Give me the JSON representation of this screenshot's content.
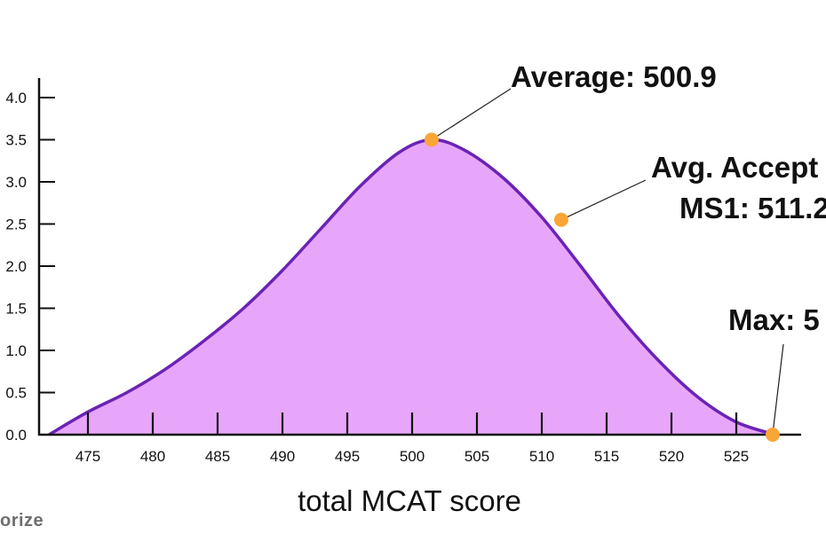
{
  "chart_data": {
    "type": "area",
    "xlabel": "total MCAT score",
    "ylabel": "",
    "xlim": [
      470,
      530
    ],
    "ylim": [
      0,
      4.0
    ],
    "x_ticks": [
      475,
      480,
      485,
      490,
      495,
      500,
      505,
      510,
      515,
      520,
      525
    ],
    "y_ticks": [
      0.0,
      0.5,
      1.0,
      1.5,
      2.0,
      2.5,
      3.0,
      3.5,
      4.0
    ],
    "x_tick_labels": [
      "475",
      "480",
      "485",
      "490",
      "495",
      "500",
      "505",
      "510",
      "515",
      "520",
      "525"
    ],
    "y_tick_labels": [
      "0.0",
      "0.5",
      "1.0",
      "1.5",
      "2.0",
      "2.5",
      "3.0",
      "3.5",
      "4.0"
    ],
    "curve": {
      "x": [
        472,
        475,
        478,
        481,
        484,
        487,
        490,
        493,
        496,
        499,
        501.5,
        504,
        507,
        510,
        513,
        516,
        519,
        522,
        525,
        528
      ],
      "y": [
        0.0,
        0.27,
        0.5,
        0.78,
        1.12,
        1.5,
        1.95,
        2.45,
        2.95,
        3.35,
        3.5,
        3.38,
        3.05,
        2.58,
        2.0,
        1.4,
        0.88,
        0.45,
        0.15,
        0.0
      ]
    },
    "colors": {
      "fill": "#E8A6FA",
      "line": "#6A23B5",
      "marker": "#FAA636",
      "axis": "#111111"
    },
    "points": [
      {
        "x": 501.5,
        "y": 3.5,
        "label_lines": [
          "Average: 500.9"
        ]
      },
      {
        "x": 511.5,
        "y": 2.55,
        "label_lines": [
          "Avg. Accept",
          "MS1: 511.2"
        ]
      },
      {
        "x": 527.8,
        "y": 0.0,
        "label_lines": [
          "Max: 5"
        ]
      }
    ]
  },
  "watermark": "orize"
}
